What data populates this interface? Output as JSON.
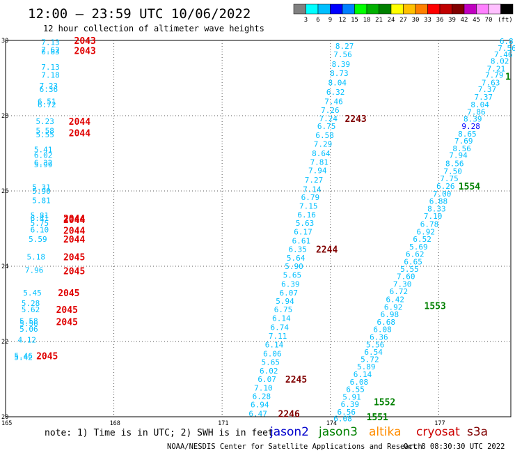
{
  "header": {
    "title": "12:00 — 23:59 UTC 10/06/2022",
    "subtitle": "12 hour collection of altimeter wave heights"
  },
  "legend": {
    "unit": "(ft)",
    "colors": [
      "#808080",
      "#00ffff",
      "#00bfff",
      "#0000ff",
      "#0080ff",
      "#00ff00",
      "#00b000",
      "#008000",
      "#ffff00",
      "#ffc000",
      "#ff8000",
      "#ff0000",
      "#c00000",
      "#800000",
      "#c000c0",
      "#ff80ff",
      "#ffc0ff",
      "#000000"
    ],
    "labels": [
      "3",
      "6",
      "9",
      "12",
      "15",
      "18",
      "21",
      "24",
      "27",
      "30",
      "33",
      "36",
      "39",
      "42",
      "45",
      "70"
    ]
  },
  "footer": {
    "note": "note: 1) Time is in UTC; 2) SWH is in feet",
    "missions": [
      {
        "name": "jason2",
        "color": "#0000cc"
      },
      {
        "name": "jason3",
        "color": "#008000"
      },
      {
        "name": "altika",
        "color": "#ff8c00"
      },
      {
        "name": "cryosat",
        "color": "#cc0000"
      },
      {
        "name": "s3a",
        "color": "#800000"
      }
    ],
    "credit": "NOAA/NESDIS Center for Satellite Applications and Research",
    "timestamp": "Oct  8 08:30:30 UTC 2022"
  },
  "chart_data": {
    "type": "scatter",
    "xlim": [
      165,
      179
    ],
    "ylim": [
      20,
      30
    ],
    "x_ticks": [
      165,
      168,
      171,
      174,
      177
    ],
    "x_tick_labels": [
      "165",
      "168",
      "171",
      "174",
      "177"
    ],
    "y_ticks": [
      20,
      22,
      24,
      26,
      28,
      30
    ],
    "y_tick_labels": [
      "20",
      "22",
      "24",
      "26",
      "28",
      "30"
    ],
    "grid": true,
    "point_color": "#00bfff",
    "points": [
      {
        "x": 166.2,
        "y": 29.95,
        "v": "7.13"
      },
      {
        "x": 166.2,
        "y": 29.75,
        "v": "7.62"
      },
      {
        "x": 166.2,
        "y": 29.7,
        "v": "6.83"
      },
      {
        "x": 166.2,
        "y": 29.3,
        "v": "7.13"
      },
      {
        "x": 166.2,
        "y": 29.08,
        "v": "7.18"
      },
      {
        "x": 166.15,
        "y": 28.8,
        "v": "7.23"
      },
      {
        "x": 166.15,
        "y": 28.7,
        "v": "6.36"
      },
      {
        "x": 166.1,
        "y": 28.38,
        "v": "6.51"
      },
      {
        "x": 166.1,
        "y": 28.3,
        "v": "6.72"
      },
      {
        "x": 166.05,
        "y": 27.85,
        "v": "5.23"
      },
      {
        "x": 166.05,
        "y": 27.6,
        "v": "5.58"
      },
      {
        "x": 166.05,
        "y": 27.5,
        "v": "5.55"
      },
      {
        "x": 166.0,
        "y": 27.1,
        "v": "5.41"
      },
      {
        "x": 166.0,
        "y": 26.95,
        "v": "6.02"
      },
      {
        "x": 166.0,
        "y": 26.75,
        "v": "6.32"
      },
      {
        "x": 166.0,
        "y": 26.7,
        "v": "5.99"
      },
      {
        "x": 165.95,
        "y": 26.1,
        "v": "5.31"
      },
      {
        "x": 165.95,
        "y": 26.0,
        "v": "5.90"
      },
      {
        "x": 165.95,
        "y": 25.75,
        "v": "5.81"
      },
      {
        "x": 165.9,
        "y": 25.35,
        "v": "5.81"
      },
      {
        "x": 165.9,
        "y": 25.28,
        "v": "6.41"
      },
      {
        "x": 165.9,
        "y": 25.15,
        "v": "5.75"
      },
      {
        "x": 165.9,
        "y": 24.97,
        "v": "6.10"
      },
      {
        "x": 165.85,
        "y": 24.72,
        "v": "5.59"
      },
      {
        "x": 165.8,
        "y": 24.25,
        "v": "5.18"
      },
      {
        "x": 165.75,
        "y": 23.9,
        "v": "7.96"
      },
      {
        "x": 165.7,
        "y": 23.3,
        "v": "5.45"
      },
      {
        "x": 165.65,
        "y": 23.02,
        "v": "5.28"
      },
      {
        "x": 165.65,
        "y": 22.85,
        "v": "5.62"
      },
      {
        "x": 165.6,
        "y": 22.55,
        "v": "5.58"
      },
      {
        "x": 165.6,
        "y": 22.48,
        "v": "5.56"
      },
      {
        "x": 165.6,
        "y": 22.33,
        "v": "5.06"
      },
      {
        "x": 165.55,
        "y": 22.05,
        "v": "4.12"
      },
      {
        "x": 165.45,
        "y": 21.62,
        "v": "5.46"
      },
      {
        "x": 165.45,
        "y": 21.58,
        "v": "5.42"
      },
      {
        "x": 174.35,
        "y": 29.85,
        "v": "8.27"
      },
      {
        "x": 174.3,
        "y": 29.63,
        "v": "7.56"
      },
      {
        "x": 174.25,
        "y": 29.37,
        "v": "8.39"
      },
      {
        "x": 174.2,
        "y": 29.13,
        "v": "8.73"
      },
      {
        "x": 174.15,
        "y": 28.88,
        "v": "8.04"
      },
      {
        "x": 174.1,
        "y": 28.63,
        "v": "6.32"
      },
      {
        "x": 174.05,
        "y": 28.38,
        "v": "7.46"
      },
      {
        "x": 173.95,
        "y": 28.15,
        "v": "7.26"
      },
      {
        "x": 173.9,
        "y": 27.93,
        "v": "7.24"
      },
      {
        "x": 173.85,
        "y": 27.72,
        "v": "6.75"
      },
      {
        "x": 173.8,
        "y": 27.48,
        "v": "6.58"
      },
      {
        "x": 173.75,
        "y": 27.25,
        "v": "7.29"
      },
      {
        "x": 173.7,
        "y": 27.0,
        "v": "8.64"
      },
      {
        "x": 173.65,
        "y": 26.77,
        "v": "7.81"
      },
      {
        "x": 173.6,
        "y": 26.55,
        "v": "7.94"
      },
      {
        "x": 173.5,
        "y": 26.3,
        "v": "7.27"
      },
      {
        "x": 173.45,
        "y": 26.05,
        "v": "7.14"
      },
      {
        "x": 173.4,
        "y": 25.83,
        "v": "6.79"
      },
      {
        "x": 173.35,
        "y": 25.6,
        "v": "7.15"
      },
      {
        "x": 173.3,
        "y": 25.37,
        "v": "6.16"
      },
      {
        "x": 173.25,
        "y": 25.15,
        "v": "5.63"
      },
      {
        "x": 173.2,
        "y": 24.92,
        "v": "6.17"
      },
      {
        "x": 173.15,
        "y": 24.68,
        "v": "6.61"
      },
      {
        "x": 173.05,
        "y": 24.45,
        "v": "6.35"
      },
      {
        "x": 173.0,
        "y": 24.22,
        "v": "5.64"
      },
      {
        "x": 172.95,
        "y": 24.0,
        "v": "5.90"
      },
      {
        "x": 172.9,
        "y": 23.77,
        "v": "5.65"
      },
      {
        "x": 172.85,
        "y": 23.53,
        "v": "6.39"
      },
      {
        "x": 172.8,
        "y": 23.3,
        "v": "6.07"
      },
      {
        "x": 172.7,
        "y": 23.07,
        "v": "5.94"
      },
      {
        "x": 172.65,
        "y": 22.85,
        "v": "6.75"
      },
      {
        "x": 172.6,
        "y": 22.62,
        "v": "6.14"
      },
      {
        "x": 172.55,
        "y": 22.38,
        "v": "6.74"
      },
      {
        "x": 172.5,
        "y": 22.15,
        "v": "7.11"
      },
      {
        "x": 172.4,
        "y": 21.92,
        "v": "6.14"
      },
      {
        "x": 172.35,
        "y": 21.68,
        "v": "6.06"
      },
      {
        "x": 172.3,
        "y": 21.45,
        "v": "5.65"
      },
      {
        "x": 172.25,
        "y": 21.22,
        "v": "6.02"
      },
      {
        "x": 172.2,
        "y": 21.0,
        "v": "6.07"
      },
      {
        "x": 172.1,
        "y": 20.77,
        "v": "7.10"
      },
      {
        "x": 172.05,
        "y": 20.55,
        "v": "6.28"
      },
      {
        "x": 172.0,
        "y": 20.32,
        "v": "6.94"
      },
      {
        "x": 171.95,
        "y": 20.08,
        "v": "6.47"
      },
      {
        "x": 178.9,
        "y": 29.98,
        "v": "6.8"
      },
      {
        "x": 178.85,
        "y": 29.8,
        "v": "7.56"
      },
      {
        "x": 178.75,
        "y": 29.63,
        "v": "7.46"
      },
      {
        "x": 178.65,
        "y": 29.45,
        "v": "8.02"
      },
      {
        "x": 178.55,
        "y": 29.25,
        "v": "7.21"
      },
      {
        "x": 178.5,
        "y": 29.08,
        "v": "7.79"
      },
      {
        "x": 178.4,
        "y": 28.88,
        "v": "7.63"
      },
      {
        "x": 178.3,
        "y": 28.7,
        "v": "7.37"
      },
      {
        "x": 178.2,
        "y": 28.5,
        "v": "7.37"
      },
      {
        "x": 178.1,
        "y": 28.3,
        "v": "8.04"
      },
      {
        "x": 178.0,
        "y": 28.1,
        "v": "7.86"
      },
      {
        "x": 177.9,
        "y": 27.92,
        "v": "8.39"
      },
      {
        "x": 177.85,
        "y": 27.72,
        "v": "9.28",
        "c": "#0000ff"
      },
      {
        "x": 177.75,
        "y": 27.52,
        "v": "8.65"
      },
      {
        "x": 177.65,
        "y": 27.33,
        "v": "7.69"
      },
      {
        "x": 177.6,
        "y": 27.13,
        "v": "8.56"
      },
      {
        "x": 177.5,
        "y": 26.95,
        "v": "7.94"
      },
      {
        "x": 177.4,
        "y": 26.73,
        "v": "8.56"
      },
      {
        "x": 177.35,
        "y": 26.53,
        "v": "7.50"
      },
      {
        "x": 177.25,
        "y": 26.33,
        "v": "7.75"
      },
      {
        "x": 177.15,
        "y": 26.13,
        "v": "6.26"
      },
      {
        "x": 177.05,
        "y": 25.93,
        "v": "7.00"
      },
      {
        "x": 176.95,
        "y": 25.73,
        "v": "6.88"
      },
      {
        "x": 176.9,
        "y": 25.53,
        "v": "8.33"
      },
      {
        "x": 176.8,
        "y": 25.33,
        "v": "7.10"
      },
      {
        "x": 176.7,
        "y": 25.12,
        "v": "6.78"
      },
      {
        "x": 176.6,
        "y": 24.92,
        "v": "6.92"
      },
      {
        "x": 176.5,
        "y": 24.72,
        "v": "6.52"
      },
      {
        "x": 176.4,
        "y": 24.52,
        "v": "5.69"
      },
      {
        "x": 176.3,
        "y": 24.32,
        "v": "6.62"
      },
      {
        "x": 176.25,
        "y": 24.12,
        "v": "6.65"
      },
      {
        "x": 176.15,
        "y": 23.93,
        "v": "5.55"
      },
      {
        "x": 176.05,
        "y": 23.73,
        "v": "7.60"
      },
      {
        "x": 175.95,
        "y": 23.53,
        "v": "7.30"
      },
      {
        "x": 175.85,
        "y": 23.33,
        "v": "6.72"
      },
      {
        "x": 175.75,
        "y": 23.12,
        "v": "6.42"
      },
      {
        "x": 175.7,
        "y": 22.92,
        "v": "6.92"
      },
      {
        "x": 175.6,
        "y": 22.72,
        "v": "6.98"
      },
      {
        "x": 175.5,
        "y": 22.52,
        "v": "6.68"
      },
      {
        "x": 175.4,
        "y": 22.32,
        "v": "6.08"
      },
      {
        "x": 175.3,
        "y": 22.12,
        "v": "6.36"
      },
      {
        "x": 175.2,
        "y": 21.92,
        "v": "5.56"
      },
      {
        "x": 175.15,
        "y": 21.72,
        "v": "6.54"
      },
      {
        "x": 175.05,
        "y": 21.53,
        "v": "5.72"
      },
      {
        "x": 174.95,
        "y": 21.33,
        "v": "5.89"
      },
      {
        "x": 174.85,
        "y": 21.13,
        "v": "6.14"
      },
      {
        "x": 174.75,
        "y": 20.93,
        "v": "6.08"
      },
      {
        "x": 174.65,
        "y": 20.73,
        "v": "6.55"
      },
      {
        "x": 174.55,
        "y": 20.53,
        "v": "5.91"
      },
      {
        "x": 174.5,
        "y": 20.33,
        "v": "6.39"
      },
      {
        "x": 174.4,
        "y": 20.13,
        "v": "6.56"
      },
      {
        "x": 174.3,
        "y": 19.95,
        "v": "6.08"
      }
    ],
    "time_labels": [
      {
        "x": 166.9,
        "y": 30.0,
        "t": "2043",
        "c": "#e00000"
      },
      {
        "x": 166.9,
        "y": 29.73,
        "t": "2043",
        "c": "#e00000"
      },
      {
        "x": 166.75,
        "y": 27.85,
        "t": "2044",
        "c": "#e00000"
      },
      {
        "x": 166.75,
        "y": 27.55,
        "t": "2044",
        "c": "#e00000"
      },
      {
        "x": 166.6,
        "y": 25.28,
        "t": "2044",
        "c": "#e00000"
      },
      {
        "x": 166.6,
        "y": 25.24,
        "t": "2044",
        "c": "#e00000"
      },
      {
        "x": 166.6,
        "y": 24.95,
        "t": "2044",
        "c": "#e00000"
      },
      {
        "x": 166.6,
        "y": 24.72,
        "t": "2044",
        "c": "#e00000"
      },
      {
        "x": 166.6,
        "y": 24.25,
        "t": "2045",
        "c": "#e00000"
      },
      {
        "x": 166.6,
        "y": 23.88,
        "t": "2045",
        "c": "#e00000"
      },
      {
        "x": 166.45,
        "y": 23.3,
        "t": "2045",
        "c": "#e00000"
      },
      {
        "x": 166.4,
        "y": 22.85,
        "t": "2045",
        "c": "#e00000"
      },
      {
        "x": 166.4,
        "y": 22.53,
        "t": "2045",
        "c": "#e00000"
      },
      {
        "x": 165.85,
        "y": 21.62,
        "t": "2045",
        "c": "#e00000"
      },
      {
        "x": 174.4,
        "y": 27.93,
        "t": "2243",
        "c": "#800000"
      },
      {
        "x": 173.6,
        "y": 24.45,
        "t": "2244",
        "c": "#800000"
      },
      {
        "x": 172.75,
        "y": 21.0,
        "t": "2245",
        "c": "#800000"
      },
      {
        "x": 172.55,
        "y": 20.08,
        "t": "2246",
        "c": "#800000"
      },
      {
        "x": 179.0,
        "y": 29.05,
        "t": "1",
        "c": "#008000"
      },
      {
        "x": 177.55,
        "y": 26.13,
        "t": "1554",
        "c": "#008000"
      },
      {
        "x": 176.6,
        "y": 22.95,
        "t": "1553",
        "c": "#008000"
      },
      {
        "x": 175.2,
        "y": 20.4,
        "t": "1552",
        "c": "#008000"
      },
      {
        "x": 175.0,
        "y": 20.0,
        "t": "1551",
        "c": "#008000"
      }
    ]
  }
}
